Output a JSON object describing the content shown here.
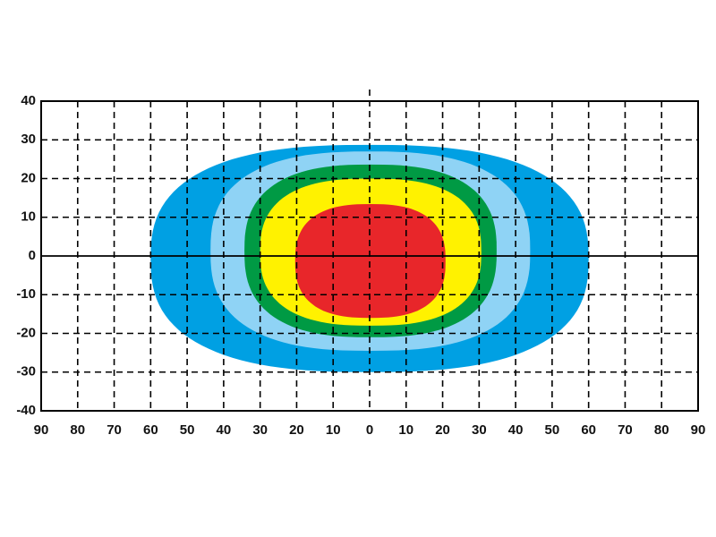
{
  "chart_data": {
    "type": "beam-pattern",
    "xlim": [
      -90,
      90
    ],
    "ylim": [
      -40,
      40
    ],
    "xticks": [
      {
        "value": -90,
        "label": "90"
      },
      {
        "value": -80,
        "label": "80"
      },
      {
        "value": -70,
        "label": "70"
      },
      {
        "value": -60,
        "label": "60"
      },
      {
        "value": -50,
        "label": "50"
      },
      {
        "value": -40,
        "label": "40"
      },
      {
        "value": -30,
        "label": "30"
      },
      {
        "value": -20,
        "label": "20"
      },
      {
        "value": -10,
        "label": "10"
      },
      0,
      10,
      20,
      30,
      40,
      50,
      60,
      70,
      80,
      90
    ],
    "yticks": [
      -40,
      -30,
      -20,
      -10,
      0,
      10,
      20,
      30,
      40
    ],
    "grid": true,
    "zones": [
      {
        "color": "#00a0e3",
        "x": [
          -60,
          60
        ],
        "y": [
          -30,
          28.7
        ]
      },
      {
        "color": "#8fd3f5",
        "x": [
          -43.6,
          44
        ],
        "y": [
          -24.5,
          27
        ]
      },
      {
        "color": "#009a44",
        "x": [
          -34.3,
          34.8
        ],
        "y": [
          -21,
          23.6
        ]
      },
      {
        "color": "#fff200",
        "x": [
          -30,
          30.6
        ],
        "y": [
          -18,
          20
        ]
      },
      {
        "color": "#e8262a",
        "x": [
          -20.4,
          20.8
        ],
        "y": [
          -16,
          13.4
        ]
      }
    ]
  }
}
